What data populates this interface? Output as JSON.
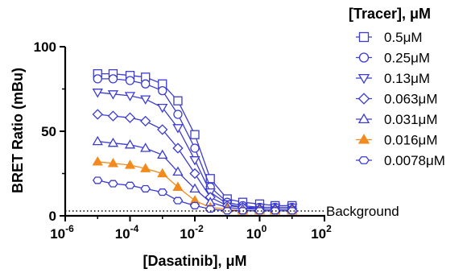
{
  "chart_data": {
    "type": "line",
    "xlabel": "[Dasatinib], μM",
    "ylabel": "BRET Ratio (mBu)",
    "x_scale": "log",
    "xlim": [
      1e-06,
      100
    ],
    "ylim": [
      0,
      100
    ],
    "x_ticks": [
      {
        "value": 1e-06,
        "base": "10",
        "exp": "-6"
      },
      {
        "value": 0.0001,
        "base": "10",
        "exp": "-4"
      },
      {
        "value": 0.01,
        "base": "10",
        "exp": "-2"
      },
      {
        "value": 1,
        "base": "10",
        "exp": "0"
      },
      {
        "value": 100,
        "base": "10",
        "exp": "2"
      }
    ],
    "y_ticks": [
      0,
      50,
      100
    ],
    "grid": false,
    "legend_title": "[Tracer], μM",
    "legend_position": "right",
    "x": [
      1e-05,
      3e-05,
      0.0001,
      0.0003,
      0.001,
      0.003,
      0.01,
      0.03,
      0.1,
      0.3,
      1,
      3,
      10
    ],
    "series": [
      {
        "name": "0.5μM",
        "marker": "square",
        "color": "#3b3bd0",
        "filled": false,
        "values": [
          84,
          84,
          83,
          82,
          78,
          68,
          48,
          22,
          10,
          8,
          7,
          6,
          6
        ]
      },
      {
        "name": "0.25μM",
        "marker": "circle",
        "color": "#3b3bd0",
        "filled": false,
        "values": [
          81,
          81,
          80,
          78,
          74,
          60,
          40,
          17,
          8,
          6,
          5,
          5,
          5
        ]
      },
      {
        "name": "0.13μM",
        "marker": "triangle-down",
        "color": "#3b3bd0",
        "filled": false,
        "values": [
          73,
          72,
          71,
          69,
          64,
          52,
          33,
          14,
          7,
          5,
          5,
          5,
          5
        ]
      },
      {
        "name": "0.063μM",
        "marker": "diamond",
        "color": "#3b3bd0",
        "filled": false,
        "values": [
          60,
          59,
          58,
          56,
          51,
          40,
          25,
          11,
          6,
          5,
          4,
          4,
          4
        ]
      },
      {
        "name": "0.031μM",
        "marker": "triangle-up",
        "color": "#3b3bd0",
        "filled": false,
        "values": [
          44,
          43,
          42,
          40,
          36,
          26,
          16,
          8,
          5,
          4,
          4,
          4,
          4
        ]
      },
      {
        "name": "0.016μM",
        "marker": "triangle-up",
        "color": "#f28a1e",
        "filled": true,
        "values": [
          32,
          31,
          30,
          28,
          25,
          17,
          9,
          5,
          4,
          3,
          3,
          3,
          3
        ]
      },
      {
        "name": "0.0078μM",
        "marker": "hexagon",
        "color": "#3b3bd0",
        "filled": false,
        "values": [
          21,
          19,
          18,
          16,
          14,
          9,
          6,
          4,
          3,
          3,
          3,
          3,
          3
        ]
      }
    ],
    "reference_line": {
      "label": "Background",
      "y": 4,
      "style": "dotted"
    }
  }
}
